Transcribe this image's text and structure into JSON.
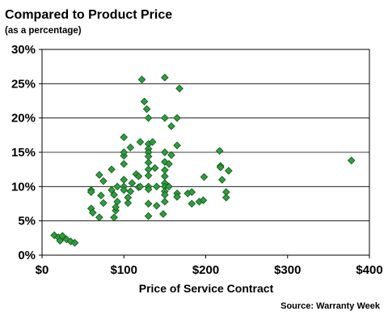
{
  "chart_data": {
    "type": "scatter",
    "title": "Compared to Product Price",
    "subtitle": "(as a percentage)",
    "xlabel": "Price of Service Contract",
    "ylabel": "",
    "source": "Source: Warranty Week",
    "xlim": [
      0,
      400
    ],
    "ylim": [
      0,
      30
    ],
    "x_ticks": [
      {
        "value": 0,
        "label": "$0"
      },
      {
        "value": 100,
        "label": "$100"
      },
      {
        "value": 200,
        "label": "$200"
      },
      {
        "value": 300,
        "label": "$300"
      },
      {
        "value": 400,
        "label": "$400"
      }
    ],
    "y_ticks": [
      {
        "value": 0,
        "label": "0%"
      },
      {
        "value": 5,
        "label": "5%"
      },
      {
        "value": 10,
        "label": "10%"
      },
      {
        "value": 15,
        "label": "15%"
      },
      {
        "value": 20,
        "label": "20%"
      },
      {
        "value": 25,
        "label": "25%"
      },
      {
        "value": 30,
        "label": "30%"
      }
    ],
    "gridlines": "horizontal",
    "marker": "diamond",
    "marker_color": "#2e9e3e",
    "marker_edge": "#1a5a22",
    "points": [
      [
        15,
        2.9
      ],
      [
        20,
        2.6
      ],
      [
        22,
        2.1
      ],
      [
        25,
        2.8
      ],
      [
        30,
        2.3
      ],
      [
        35,
        2.0
      ],
      [
        40,
        1.8
      ],
      [
        60,
        9.5
      ],
      [
        60,
        9.2
      ],
      [
        60,
        6.8
      ],
      [
        62,
        6.2
      ],
      [
        70,
        11.7
      ],
      [
        70,
        5.5
      ],
      [
        72,
        8.7
      ],
      [
        75,
        7.6
      ],
      [
        75,
        10.8
      ],
      [
        85,
        12.5
      ],
      [
        85,
        9.5
      ],
      [
        88,
        8.8
      ],
      [
        88,
        5.5
      ],
      [
        90,
        6.5
      ],
      [
        90,
        7.0
      ],
      [
        92,
        10.0
      ],
      [
        92,
        7.8
      ],
      [
        100,
        17.2
      ],
      [
        100,
        14.5
      ],
      [
        100,
        15.0
      ],
      [
        100,
        13.3
      ],
      [
        100,
        11.0
      ],
      [
        100,
        10.0
      ],
      [
        100,
        9.5
      ],
      [
        105,
        7.6
      ],
      [
        105,
        8.4
      ],
      [
        108,
        15.7
      ],
      [
        108,
        9.3
      ],
      [
        110,
        10.5
      ],
      [
        115,
        11.8
      ],
      [
        118,
        11.5
      ],
      [
        118,
        9.9
      ],
      [
        120,
        10.0
      ],
      [
        120,
        16.5
      ],
      [
        122,
        25.6
      ],
      [
        125,
        22.4
      ],
      [
        128,
        21.3
      ],
      [
        130,
        20.0
      ],
      [
        130,
        16.2
      ],
      [
        130,
        15.5
      ],
      [
        130,
        15.0
      ],
      [
        130,
        14.4
      ],
      [
        130,
        13.5
      ],
      [
        130,
        12.5
      ],
      [
        130,
        11.6
      ],
      [
        130,
        10.0
      ],
      [
        130,
        9.6
      ],
      [
        130,
        7.5
      ],
      [
        130,
        5.7
      ],
      [
        135,
        16.5
      ],
      [
        138,
        12.7
      ],
      [
        140,
        10.0
      ],
      [
        140,
        7.2
      ],
      [
        148,
        6.0
      ],
      [
        150,
        25.9
      ],
      [
        150,
        20.0
      ],
      [
        150,
        15.0
      ],
      [
        150,
        13.6
      ],
      [
        150,
        12.4
      ],
      [
        150,
        11.5
      ],
      [
        150,
        10.5
      ],
      [
        150,
        10.0
      ],
      [
        150,
        9.3
      ],
      [
        150,
        8.8
      ],
      [
        150,
        7.8
      ],
      [
        155,
        10.0
      ],
      [
        155,
        13.3
      ],
      [
        158,
        18.8
      ],
      [
        158,
        14.6
      ],
      [
        165,
        20.0
      ],
      [
        165,
        16.0
      ],
      [
        165,
        9.0
      ],
      [
        165,
        8.5
      ],
      [
        168,
        24.3
      ],
      [
        178,
        9.0
      ],
      [
        183,
        9.2
      ],
      [
        183,
        7.5
      ],
      [
        192,
        7.8
      ],
      [
        197,
        8.0
      ],
      [
        198,
        11.4
      ],
      [
        217,
        15.2
      ],
      [
        218,
        13.0
      ],
      [
        218,
        12.8
      ],
      [
        220,
        11.0
      ],
      [
        225,
        9.2
      ],
      [
        225,
        8.4
      ],
      [
        228,
        12.3
      ],
      [
        378,
        13.8
      ]
    ]
  }
}
